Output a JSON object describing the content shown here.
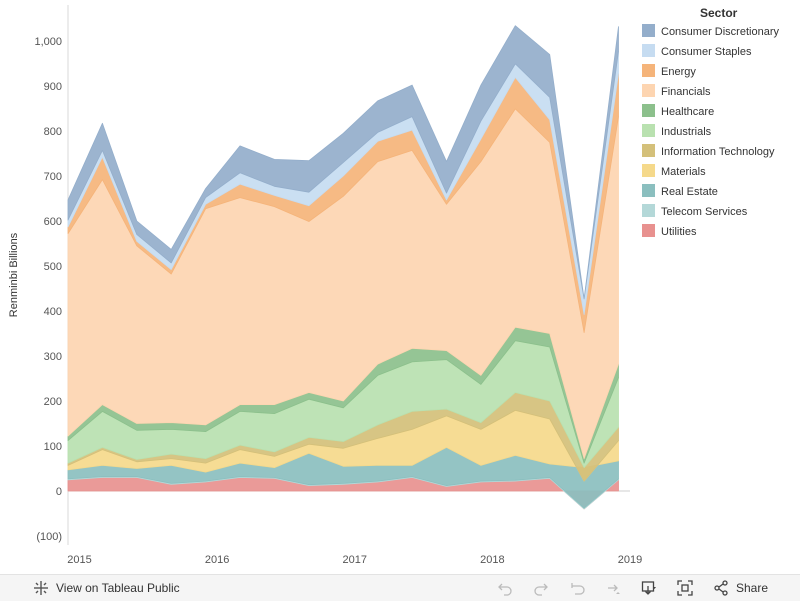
{
  "chart_data": {
    "type": "area",
    "stacked": true,
    "ylabel": "Renminbi Billions",
    "ylim": [
      -120,
      1080
    ],
    "yticks": [
      -100,
      0,
      100,
      200,
      300,
      400,
      500,
      600,
      700,
      800,
      900,
      1000
    ],
    "ytick_labels": [
      "(100)",
      "0",
      "100",
      "200",
      "300",
      "400",
      "500",
      "600",
      "700",
      "800",
      "900",
      "1,000"
    ],
    "x": [
      "2014-12",
      "2015-03",
      "2015-06",
      "2015-09",
      "2015-12",
      "2016-03",
      "2016-06",
      "2016-09",
      "2016-12",
      "2017-03",
      "2017-06",
      "2017-09",
      "2017-12",
      "2018-03",
      "2018-06",
      "2018-09",
      "2018-12"
    ],
    "xlim": [
      "2014-12",
      "2019-01"
    ],
    "xtick_labels": [
      {
        "label": "2015",
        "date": "2015-01"
      },
      {
        "label": "2016",
        "date": "2016-01"
      },
      {
        "label": "2017",
        "date": "2017-01"
      },
      {
        "label": "2018",
        "date": "2018-01"
      },
      {
        "label": "2019",
        "date": "2019-01"
      }
    ],
    "series": [
      {
        "name": "Utilities",
        "color": "#e8918f",
        "values": [
          25,
          30,
          30,
          15,
          20,
          30,
          28,
          12,
          15,
          20,
          30,
          10,
          20,
          22,
          28,
          -40,
          25
        ]
      },
      {
        "name": "Telecom Services",
        "color": "#b4d8d8",
        "values": [
          2,
          2,
          2,
          2,
          2,
          2,
          2,
          2,
          2,
          2,
          2,
          2,
          2,
          2,
          2,
          2,
          2
        ]
      },
      {
        "name": "Real Estate",
        "color": "#8bbfbf",
        "values": [
          20,
          25,
          18,
          40,
          20,
          30,
          22,
          70,
          38,
          35,
          25,
          85,
          35,
          55,
          30,
          90,
          40
        ]
      },
      {
        "name": "Materials",
        "color": "#f5d98b",
        "values": [
          10,
          35,
          15,
          15,
          20,
          30,
          25,
          20,
          40,
          60,
          80,
          70,
          80,
          100,
          100,
          -30,
          45
        ]
      },
      {
        "name": "Information Technology",
        "color": "#d4c07a",
        "values": [
          5,
          5,
          5,
          10,
          10,
          10,
          10,
          15,
          15,
          30,
          40,
          15,
          15,
          40,
          40,
          30,
          30
        ]
      },
      {
        "name": "Industrials",
        "color": "#b9e1b0",
        "values": [
          50,
          80,
          65,
          55,
          60,
          75,
          85,
          85,
          75,
          110,
          110,
          110,
          85,
          115,
          120,
          10,
          110
        ]
      },
      {
        "name": "Healthcare",
        "color": "#8cc08c",
        "values": [
          10,
          15,
          15,
          15,
          15,
          15,
          20,
          15,
          15,
          25,
          30,
          20,
          20,
          30,
          30,
          10,
          30
        ]
      },
      {
        "name": "Financials",
        "color": "#fdd5b1",
        "values": [
          450,
          500,
          395,
          330,
          480,
          460,
          440,
          380,
          455,
          450,
          440,
          325,
          475,
          485,
          425,
          280,
          550
        ]
      },
      {
        "name": "Energy",
        "color": "#f5b47a",
        "values": [
          15,
          50,
          10,
          10,
          10,
          30,
          25,
          35,
          45,
          45,
          45,
          10,
          50,
          70,
          50,
          40,
          95
        ]
      },
      {
        "name": "Consumer Staples",
        "color": "#c6dcf1",
        "values": [
          15,
          15,
          15,
          15,
          15,
          25,
          20,
          30,
          30,
          20,
          30,
          15,
          40,
          30,
          50,
          35,
          50
        ]
      },
      {
        "name": "Consumer Discretionary",
        "color": "#94aecb",
        "values": [
          45,
          60,
          30,
          30,
          20,
          60,
          60,
          70,
          65,
          70,
          70,
          70,
          80,
          85,
          95,
          0,
          55
        ]
      }
    ],
    "legend": {
      "title": "Sector",
      "position": "right",
      "order": [
        "Consumer Discretionary",
        "Consumer Staples",
        "Energy",
        "Financials",
        "Healthcare",
        "Industrials",
        "Information Technology",
        "Materials",
        "Real Estate",
        "Telecom Services",
        "Utilities"
      ]
    }
  },
  "toolbar": {
    "view_label": "View on Tableau Public",
    "share_label": "Share",
    "icons": [
      "tableau-logo-icon",
      "undo-icon",
      "redo-icon",
      "revert-icon",
      "refresh-icon",
      "download-icon",
      "fullscreen-icon",
      "share-icon"
    ]
  }
}
